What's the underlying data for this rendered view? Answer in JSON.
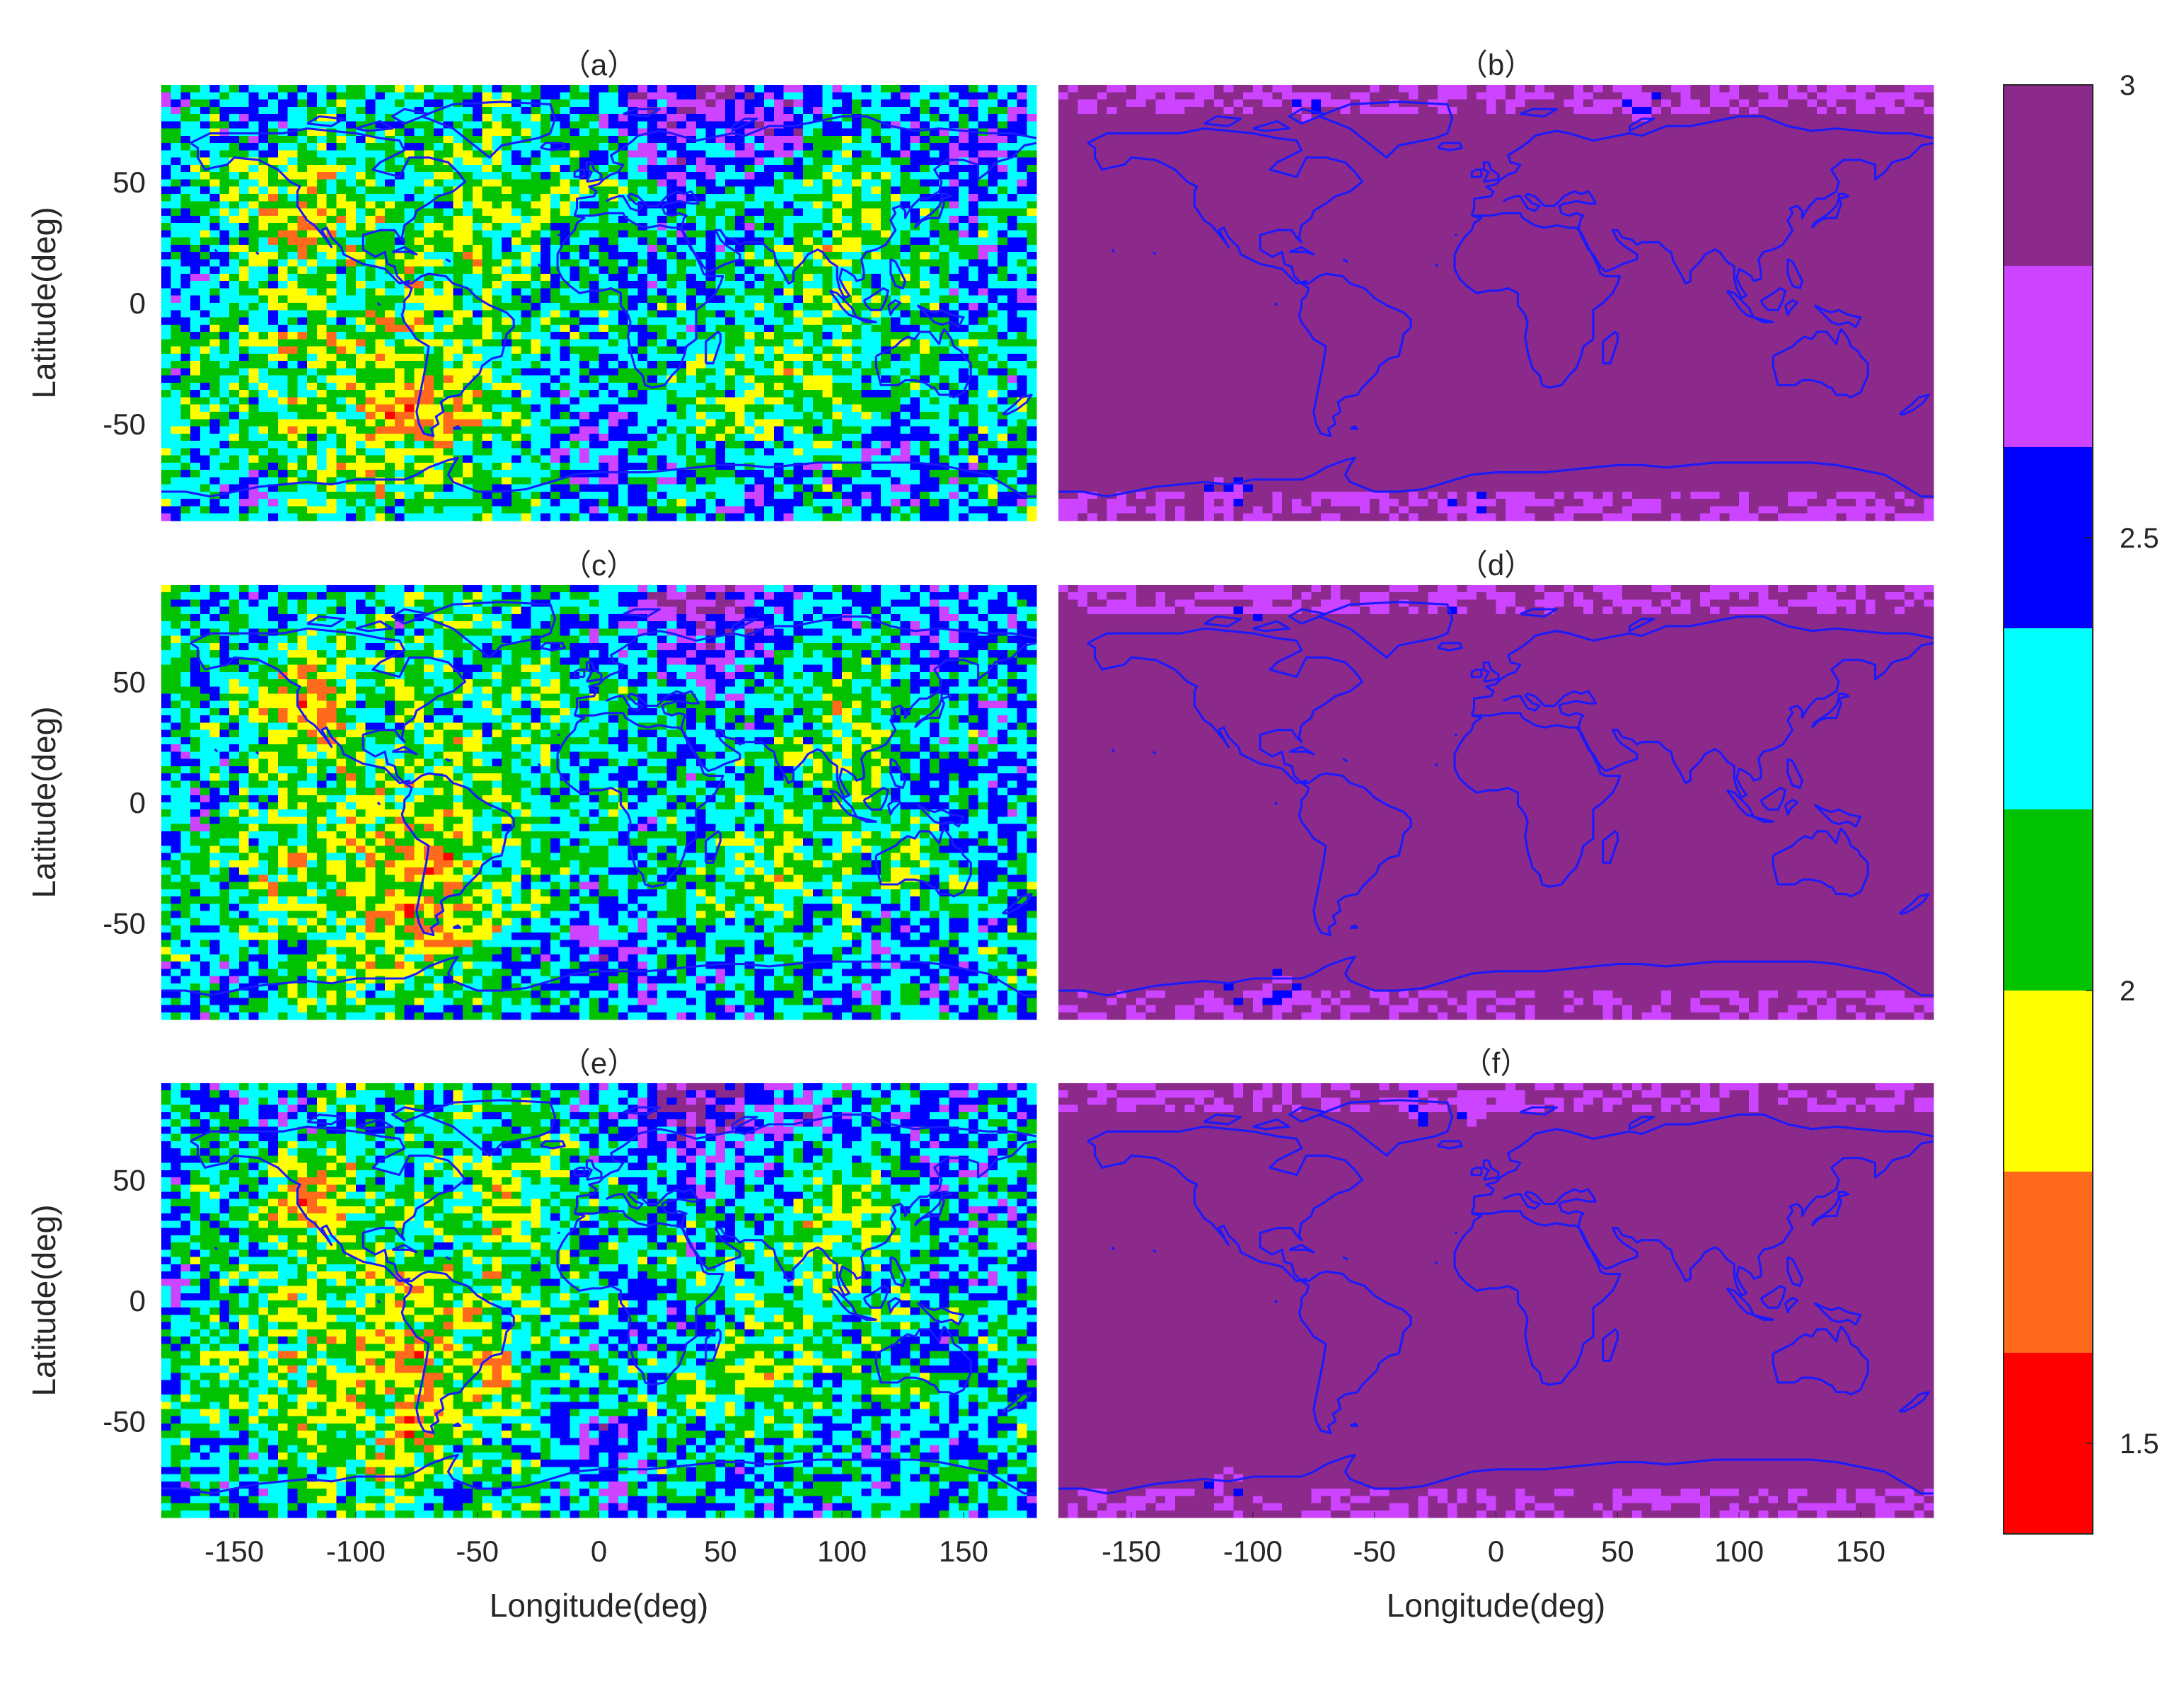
{
  "chart_data": {
    "type": "heatmap",
    "layout": "3 rows x 2 columns of global longitude-latitude maps with a shared colorbar",
    "xlabel": "Longitude(deg)",
    "ylabel": "Latitude(deg)",
    "xlim": [
      -180,
      180
    ],
    "ylim": [
      -90,
      90
    ],
    "xticks": [
      -150,
      -100,
      -50,
      0,
      50,
      100,
      150
    ],
    "xtick_labels": [
      "-150",
      "-100",
      "-50",
      "0",
      "50",
      "100",
      "150"
    ],
    "yticks": [
      50,
      0,
      -50
    ],
    "ytick_labels": [
      "50",
      "0",
      "-50"
    ],
    "colorbar": {
      "range": [
        1.4,
        3.0
      ],
      "ticks": [
        3,
        2.5,
        2,
        1.5
      ],
      "tick_labels": [
        "3",
        "2.5",
        "2",
        "1.5"
      ],
      "levels": [
        1.4,
        1.6,
        1.8,
        2.0,
        2.2,
        2.4,
        2.6,
        2.8,
        3.0
      ],
      "colors": [
        "#ff0000",
        "#ff6a1c",
        "#ffff00",
        "#00c200",
        "#00ffff",
        "#0000ff",
        "#cc44ff",
        "#8b2a8b"
      ]
    },
    "coastline_color": "#1a1aff",
    "panels": [
      {
        "label": "（a）",
        "column": "left",
        "row": 1,
        "pattern": "mixed",
        "value_range": [
          1.4,
          3.0
        ],
        "description_of_field": "heterogeneous values 1.4-3.0 across globe"
      },
      {
        "label": "（b）",
        "column": "right",
        "row": 1,
        "pattern": "uniform",
        "value_range": [
          2.4,
          3.0
        ],
        "polar_lower": [
          [
            -75,
            82
          ],
          [
            40,
            82
          ],
          [
            -110,
            -78
          ],
          [
            -10,
            -82
          ],
          [
            60,
            82
          ]
        ]
      },
      {
        "label": "（c）",
        "column": "left",
        "row": 2,
        "pattern": "mixed",
        "value_range": [
          1.4,
          3.0
        ]
      },
      {
        "label": "（d）",
        "column": "right",
        "row": 2,
        "pattern": "uniform",
        "value_range": [
          2.4,
          3.0
        ],
        "polar_lower": [
          [
            -90,
            -78
          ],
          [
            -110,
            -80
          ],
          [
            -20,
            82
          ],
          [
            -100,
            82
          ]
        ]
      },
      {
        "label": "（e）",
        "column": "left",
        "row": 3,
        "pattern": "mixed",
        "value_range": [
          1.4,
          3.0
        ]
      },
      {
        "label": "（f）",
        "column": "right",
        "row": 3,
        "pattern": "uniform",
        "value_range": [
          2.6,
          3.0
        ],
        "polar_lower": [
          [
            -110,
            -78
          ],
          [
            -30,
            82
          ],
          [
            -10,
            82
          ]
        ]
      }
    ],
    "mixed_field_anchors": [
      {
        "lon": -120,
        "lat": 45,
        "value": 1.5
      },
      {
        "lon": -75,
        "lat": -40,
        "value": 1.5
      },
      {
        "lon": -60,
        "lat": -35,
        "value": 1.9
      },
      {
        "lon": -100,
        "lat": -30,
        "value": 2.0
      },
      {
        "lon": -130,
        "lat": -35,
        "value": 2.0
      },
      {
        "lon": -150,
        "lat": -30,
        "value": 2.1
      },
      {
        "lon": -40,
        "lat": 40,
        "value": 2.0
      },
      {
        "lon": -20,
        "lat": 30,
        "value": 2.2
      },
      {
        "lon": 0,
        "lat": 15,
        "value": 2.3
      },
      {
        "lon": 30,
        "lat": -10,
        "value": 2.4
      },
      {
        "lon": 50,
        "lat": -40,
        "value": 2.1
      },
      {
        "lon": 70,
        "lat": -35,
        "value": 1.95
      },
      {
        "lon": 100,
        "lat": 40,
        "value": 1.9
      },
      {
        "lon": 110,
        "lat": 20,
        "value": 2.0
      },
      {
        "lon": 120,
        "lat": -35,
        "value": 2.1
      },
      {
        "lon": 150,
        "lat": -25,
        "value": 2.3
      },
      {
        "lon": 160,
        "lat": 10,
        "value": 2.5
      },
      {
        "lon": -170,
        "lat": 0,
        "value": 2.5
      },
      {
        "lon": -160,
        "lat": 50,
        "value": 2.2
      },
      {
        "lon": 40,
        "lat": 80,
        "value": 2.9
      },
      {
        "lon": 70,
        "lat": 75,
        "value": 2.7
      },
      {
        "lon": 150,
        "lat": 75,
        "value": 2.6
      },
      {
        "lon": -130,
        "lat": 75,
        "value": 2.55
      },
      {
        "lon": 0,
        "lat": -60,
        "value": 2.65
      },
      {
        "lon": 60,
        "lat": -75,
        "value": 2.5
      },
      {
        "lon": -150,
        "lat": -75,
        "value": 2.5
      },
      {
        "lon": 120,
        "lat": -60,
        "value": 2.55
      },
      {
        "lon": -60,
        "lat": -85,
        "value": 2.3
      },
      {
        "lon": 150,
        "lat": 50,
        "value": 2.45
      },
      {
        "lon": -90,
        "lat": 60,
        "value": 2.35
      }
    ]
  }
}
